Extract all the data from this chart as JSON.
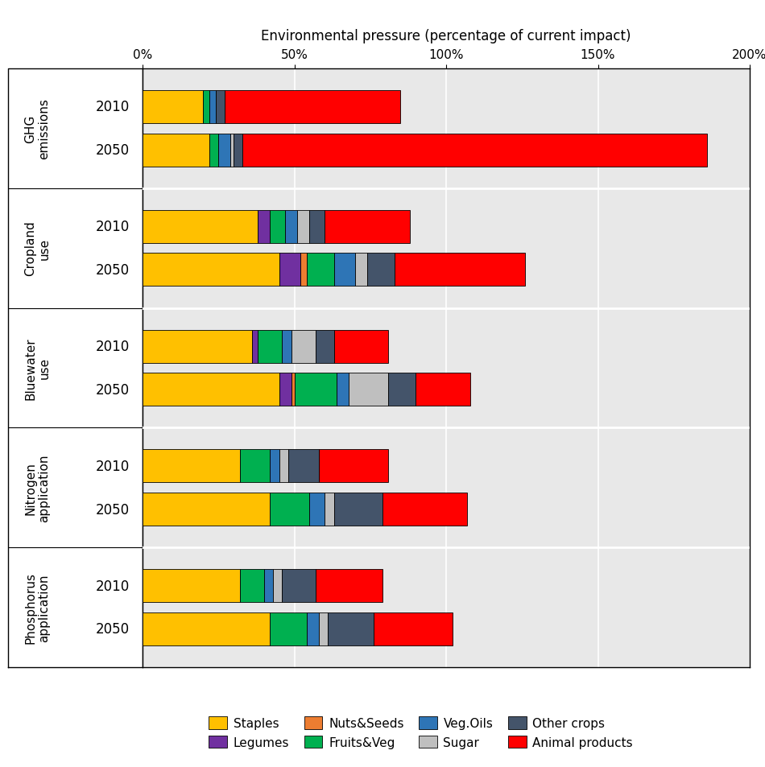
{
  "title": "Environmental pressure (percentage of current impact)",
  "xlim": [
    0,
    200
  ],
  "xticks": [
    0,
    50,
    100,
    150,
    200
  ],
  "xticklabels": [
    "0%",
    "50%",
    "100%",
    "150%",
    "200%"
  ],
  "plot_bg": "#e8e8e8",
  "fig_bg": "#ffffff",
  "group_names": [
    "GHG\nemissions",
    "Cropland\nuse",
    "Bluewater\nuse",
    "Nitrogen\napplication",
    "Phosphorus\napplication"
  ],
  "year_labels": [
    "2010",
    "2050"
  ],
  "segments_order": [
    "Staples",
    "Legumes",
    "Nuts&Seeds",
    "Fruits&Veg",
    "Veg.Oils",
    "Sugar",
    "Other crops",
    "Animal products"
  ],
  "colors": {
    "Staples": "#FFC000",
    "Legumes": "#7030A0",
    "Nuts&Seeds": "#ED7D31",
    "Fruits&Veg": "#00B050",
    "Veg.Oils": "#2E75B6",
    "Sugar": "#BFBFBF",
    "Other crops": "#44546A",
    "Animal products": "#FF0000"
  },
  "values": {
    "Staples": [
      20,
      22,
      38,
      45,
      36,
      45,
      32,
      42,
      32,
      42
    ],
    "Legumes": [
      0,
      0,
      4,
      7,
      2,
      4,
      0,
      0,
      0,
      0
    ],
    "Nuts&Seeds": [
      0,
      0,
      0,
      2,
      0,
      1,
      0,
      0,
      0,
      0
    ],
    "Fruits&Veg": [
      2,
      3,
      5,
      9,
      8,
      14,
      10,
      13,
      8,
      12
    ],
    "Veg.Oils": [
      2,
      4,
      4,
      7,
      3,
      4,
      3,
      5,
      3,
      4
    ],
    "Sugar": [
      0,
      1,
      4,
      4,
      8,
      13,
      3,
      3,
      3,
      3
    ],
    "Other crops": [
      3,
      3,
      5,
      9,
      6,
      9,
      10,
      16,
      11,
      15
    ],
    "Animal products": [
      58,
      153,
      28,
      43,
      18,
      18,
      23,
      28,
      22,
      26
    ]
  },
  "bar_height": 0.55,
  "gridline_color": "#ffffff",
  "gridline_lw": 1.2,
  "separator_color": "#ffffff",
  "separator_lw": 2.0,
  "legend_fontsize": 11,
  "tick_fontsize": 11,
  "label_fontsize": 12,
  "year_fontsize": 12,
  "group_fontsize": 11
}
